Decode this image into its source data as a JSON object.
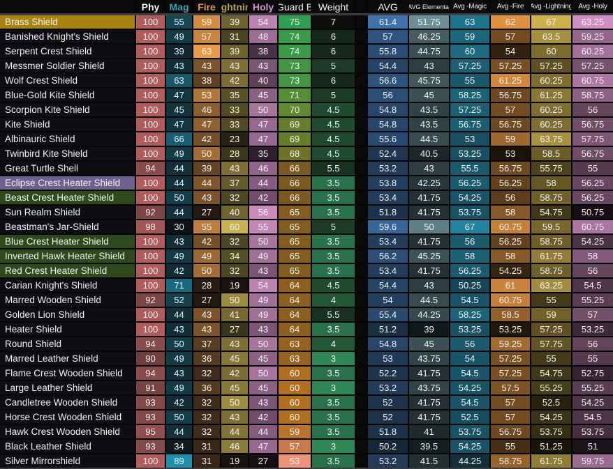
{
  "table": {
    "columns": [
      {
        "key": "name",
        "label": ""
      },
      {
        "key": "phy",
        "label": "Phy"
      },
      {
        "key": "mag",
        "label": "Mag"
      },
      {
        "key": "fire",
        "label": "Fire"
      },
      {
        "key": "lightning",
        "label": "Lightning"
      },
      {
        "key": "holy",
        "label": "Holy"
      },
      {
        "key": "guard",
        "label": "Guard B"
      },
      {
        "key": "weight",
        "label": "Weight"
      },
      {
        "key": "spacer",
        "label": ""
      },
      {
        "key": "avg",
        "label": "AVG"
      },
      {
        "key": "avg_elemental",
        "label": "AVG Elemental"
      },
      {
        "key": "avg_magic",
        "label": "Avg -Magic"
      },
      {
        "key": "avg_fire",
        "label": "Avg -Fire"
      },
      {
        "key": "avg_lightning",
        "label": "Avg -Lightning"
      },
      {
        "key": "avg_holy",
        "label": "Avg -Holy"
      }
    ],
    "header_text_colors": {
      "phy": "#f2f2f2",
      "mag": "#35a3bf",
      "fire": "#e09a50",
      "lightning": "#b7a04e",
      "holy": "#d98fd0",
      "guard": "#f2f2f2",
      "weight": "#f2f2f2",
      "avg": "#f2f2f2",
      "avg_elemental": "#ededed",
      "avg_magic": "#ededed",
      "avg_fire": "#ededed",
      "avg_lightning": "#ededed",
      "avg_holy": "#ededed"
    },
    "name_colors": {
      "default": "#0e0d12",
      "gold": "#a9830d",
      "purple": "#6e6190",
      "green": "#2e4a1c"
    },
    "color_scales": {
      "phy": [
        [
          90,
          "#6f3f3f"
        ],
        [
          100,
          "#b05c5c"
        ]
      ],
      "mag": [
        [
          30,
          "#0c1317"
        ],
        [
          89,
          "#1f8fae"
        ]
      ],
      "fire": [
        [
          27,
          "#221911"
        ],
        [
          63,
          "#e89b49"
        ]
      ],
      "lightning": [
        [
          19,
          "#16140c"
        ],
        [
          60,
          "#c8b150"
        ]
      ],
      "holy": [
        [
          27,
          "#150e13"
        ],
        [
          36,
          "#342132"
        ],
        [
          44,
          "#855c80"
        ],
        [
          56,
          "#c88bbc"
        ]
      ],
      "guard": [
        [
          53,
          "#f0917a"
        ],
        [
          57,
          "#c97a4a"
        ],
        [
          60,
          "#b06f1f"
        ],
        [
          63,
          "#96621f"
        ],
        [
          66,
          "#7a5a20"
        ],
        [
          70,
          "#5f8a30"
        ],
        [
          75,
          "#2f9e4e"
        ]
      ],
      "weight": [
        [
          3,
          "#2e8755"
        ],
        [
          3.5,
          "#28714a"
        ],
        [
          4,
          "#225836"
        ],
        [
          5,
          "#1b3b26"
        ],
        [
          6,
          "#15281b"
        ],
        [
          7,
          "#0d0f0d"
        ]
      ],
      "avg": [
        [
          50.2,
          "#16273a"
        ],
        [
          61.4,
          "#3f72ad"
        ]
      ],
      "avg_elemental": [
        [
          39,
          "#10181a"
        ],
        [
          51.75,
          "#6b8f98"
        ]
      ],
      "avg_magic": [
        [
          44.25,
          "#12303a"
        ],
        [
          67,
          "#21839f"
        ]
      ],
      "avg_fire": [
        [
          53,
          "#1c1309"
        ],
        [
          62,
          "#df9140"
        ]
      ],
      "avg_lightning": [
        [
          51.25,
          "#191507"
        ],
        [
          67,
          "#cdb14e"
        ]
      ],
      "avg_holy": [
        [
          50.75,
          "#180f16"
        ],
        [
          63.25,
          "#cf8fc2"
        ]
      ]
    },
    "rows": [
      {
        "name": "Brass Shield",
        "tint": "gold",
        "values": {
          "phy": 100,
          "mag": 55,
          "fire": 59,
          "lightning": 39,
          "holy": 54,
          "guard": 75,
          "weight": 7,
          "avg": 61.4,
          "avg_elemental": 51.75,
          "avg_magic": 63,
          "avg_fire": 62,
          "avg_lightning": 67,
          "avg_holy": 63.25
        }
      },
      {
        "name": "Banished Knight's Shield",
        "tint": "default",
        "values": {
          "phy": 100,
          "mag": 49,
          "fire": 57,
          "lightning": 31,
          "holy": 48,
          "guard": 74,
          "weight": 6,
          "avg": 57,
          "avg_elemental": 46.25,
          "avg_magic": 59,
          "avg_fire": 57,
          "avg_lightning": 63.5,
          "avg_holy": 59.25
        }
      },
      {
        "name": "Serpent Crest Shield",
        "tint": "default",
        "values": {
          "phy": 100,
          "mag": 39,
          "fire": 63,
          "lightning": 39,
          "holy": 38,
          "guard": 74,
          "weight": 6,
          "avg": 55.8,
          "avg_elemental": 44.75,
          "avg_magic": 60,
          "avg_fire": 54,
          "avg_lightning": 60,
          "avg_holy": 60.25
        }
      },
      {
        "name": "Messmer Soldier Shield",
        "tint": "default",
        "values": {
          "phy": 100,
          "mag": 43,
          "fire": 43,
          "lightning": 43,
          "holy": 43,
          "guard": 73,
          "weight": 5,
          "avg": 54.4,
          "avg_elemental": 43,
          "avg_magic": 57.25,
          "avg_fire": 57.25,
          "avg_lightning": 57.25,
          "avg_holy": 57.25
        }
      },
      {
        "name": "Wolf Crest Shield",
        "tint": "default",
        "values": {
          "phy": 100,
          "mag": 63,
          "fire": 38,
          "lightning": 42,
          "holy": 40,
          "guard": 73,
          "weight": 6,
          "avg": 56.6,
          "avg_elemental": 45.75,
          "avg_magic": 55,
          "avg_fire": 61.25,
          "avg_lightning": 60.25,
          "avg_holy": 60.75
        }
      },
      {
        "name": "Blue-Gold Kite Shield",
        "tint": "default",
        "values": {
          "phy": 100,
          "mag": 47,
          "fire": 53,
          "lightning": 35,
          "holy": 45,
          "guard": 71,
          "weight": 5,
          "avg": 56,
          "avg_elemental": 45,
          "avg_magic": 58.25,
          "avg_fire": 56.75,
          "avg_lightning": 61.25,
          "avg_holy": 58.75
        }
      },
      {
        "name": "Scorpion Kite Shield",
        "tint": "default",
        "values": {
          "phy": 100,
          "mag": 45,
          "fire": 46,
          "lightning": 33,
          "holy": 50,
          "guard": 70,
          "weight": 4.5,
          "avg": 54.8,
          "avg_elemental": 43.5,
          "avg_magic": 57.25,
          "avg_fire": 57,
          "avg_lightning": 60.25,
          "avg_holy": 56
        }
      },
      {
        "name": "Kite Shield",
        "tint": "default",
        "values": {
          "phy": 100,
          "mag": 47,
          "fire": 47,
          "lightning": 33,
          "holy": 47,
          "guard": 69,
          "weight": 4.5,
          "avg": 54.8,
          "avg_elemental": 43.5,
          "avg_magic": 56.75,
          "avg_fire": 56.75,
          "avg_lightning": 60.25,
          "avg_holy": 56.75
        }
      },
      {
        "name": "Albinauric Shield",
        "tint": "default",
        "values": {
          "phy": 100,
          "mag": 66,
          "fire": 42,
          "lightning": 23,
          "holy": 47,
          "guard": 69,
          "weight": 4.5,
          "avg": 55.6,
          "avg_elemental": 44.5,
          "avg_magic": 53,
          "avg_fire": 59,
          "avg_lightning": 63.75,
          "avg_holy": 57.75
        }
      },
      {
        "name": "Twinbird Kite Shield",
        "tint": "default",
        "values": {
          "phy": 100,
          "mag": 49,
          "fire": 50,
          "lightning": 28,
          "holy": 35,
          "guard": 68,
          "weight": 4.5,
          "avg": 52.4,
          "avg_elemental": 40.5,
          "avg_magic": 53.25,
          "avg_fire": 53,
          "avg_lightning": 58.5,
          "avg_holy": 56.75
        }
      },
      {
        "name": "Great Turtle Shell",
        "tint": "default",
        "values": {
          "phy": 94,
          "mag": 44,
          "fire": 39,
          "lightning": 43,
          "holy": 46,
          "guard": 66,
          "weight": 5.5,
          "avg": 53.2,
          "avg_elemental": 43,
          "avg_magic": 55.5,
          "avg_fire": 56.75,
          "avg_lightning": 55.75,
          "avg_holy": 55
        }
      },
      {
        "name": "Eclipse Crest Heater Shield",
        "tint": "purple",
        "values": {
          "phy": 100,
          "mag": 44,
          "fire": 44,
          "lightning": 37,
          "holy": 44,
          "guard": 66,
          "weight": 3.5,
          "avg": 53.8,
          "avg_elemental": 42.25,
          "avg_magic": 56.25,
          "avg_fire": 56.25,
          "avg_lightning": 58,
          "avg_holy": 56.25
        }
      },
      {
        "name": "Beast Crest Heater Shield",
        "tint": "green",
        "values": {
          "phy": 100,
          "mag": 50,
          "fire": 43,
          "lightning": 32,
          "holy": 42,
          "guard": 66,
          "weight": 3.5,
          "avg": 53.4,
          "avg_elemental": 41.75,
          "avg_magic": 54.25,
          "avg_fire": 56,
          "avg_lightning": 58.75,
          "avg_holy": 56.25
        }
      },
      {
        "name": "Sun Realm Shield",
        "tint": "default",
        "values": {
          "phy": 92,
          "mag": 44,
          "fire": 27,
          "lightning": 40,
          "holy": 56,
          "guard": 65,
          "weight": 3.5,
          "avg": 51.8,
          "avg_elemental": 41.75,
          "avg_magic": 53.75,
          "avg_fire": 58,
          "avg_lightning": 54.75,
          "avg_holy": 50.75
        }
      },
      {
        "name": "Beastman's Jar-Shield",
        "tint": "default",
        "values": {
          "phy": 98,
          "mag": 30,
          "fire": 55,
          "lightning": 60,
          "holy": 55,
          "guard": 65,
          "weight": 5,
          "avg": 59.6,
          "avg_elemental": 50,
          "avg_magic": 67,
          "avg_fire": 60.75,
          "avg_lightning": 59.5,
          "avg_holy": 60.75
        }
      },
      {
        "name": "Blue Crest Heater Shield",
        "tint": "green",
        "values": {
          "phy": 100,
          "mag": 43,
          "fire": 42,
          "lightning": 32,
          "holy": 50,
          "guard": 65,
          "weight": 3.5,
          "avg": 53.4,
          "avg_elemental": 41.75,
          "avg_magic": 56,
          "avg_fire": 56.25,
          "avg_lightning": 58.75,
          "avg_holy": 54.25
        }
      },
      {
        "name": "Inverted Hawk Heater Shield",
        "tint": "green",
        "values": {
          "phy": 100,
          "mag": 49,
          "fire": 49,
          "lightning": 34,
          "holy": 49,
          "guard": 65,
          "weight": 3.5,
          "avg": 56.2,
          "avg_elemental": 45.25,
          "avg_magic": 58,
          "avg_fire": 58,
          "avg_lightning": 61.75,
          "avg_holy": 58
        }
      },
      {
        "name": "Red Crest Heater Shield",
        "tint": "green",
        "values": {
          "phy": 100,
          "mag": 42,
          "fire": 50,
          "lightning": 32,
          "holy": 43,
          "guard": 65,
          "weight": 3.5,
          "avg": 53.4,
          "avg_elemental": 41.75,
          "avg_magic": 56.25,
          "avg_fire": 54.25,
          "avg_lightning": 58.75,
          "avg_holy": 56
        }
      },
      {
        "name": "Carian Knight's Shield",
        "tint": "default",
        "values": {
          "phy": 100,
          "mag": 71,
          "fire": 28,
          "lightning": 19,
          "holy": 54,
          "guard": 64,
          "weight": 4.5,
          "avg": 54.4,
          "avg_elemental": 43,
          "avg_magic": 50.25,
          "avg_fire": 61,
          "avg_lightning": 63.25,
          "avg_holy": 54.5
        }
      },
      {
        "name": "Marred Wooden Shield",
        "tint": "default",
        "values": {
          "phy": 92,
          "mag": 52,
          "fire": 27,
          "lightning": 50,
          "holy": 49,
          "guard": 64,
          "weight": 4,
          "avg": 54,
          "avg_elemental": 44.5,
          "avg_magic": 54.5,
          "avg_fire": 60.75,
          "avg_lightning": 55,
          "avg_holy": 55.25
        }
      },
      {
        "name": "Golden Lion Shield",
        "tint": "default",
        "values": {
          "phy": 100,
          "mag": 44,
          "fire": 43,
          "lightning": 41,
          "holy": 49,
          "guard": 64,
          "weight": 5.5,
          "avg": 55.4,
          "avg_elemental": 44.25,
          "avg_magic": 58.25,
          "avg_fire": 58.5,
          "avg_lightning": 59,
          "avg_holy": 57
        }
      },
      {
        "name": "Heater Shield",
        "tint": "default",
        "values": {
          "phy": 100,
          "mag": 43,
          "fire": 43,
          "lightning": 27,
          "holy": 43,
          "guard": 64,
          "weight": 3.5,
          "avg": 51.2,
          "avg_elemental": 39,
          "avg_magic": 53.25,
          "avg_fire": 53.25,
          "avg_lightning": 57.25,
          "avg_holy": 53.25
        }
      },
      {
        "name": "Round Shield",
        "tint": "default",
        "values": {
          "phy": 94,
          "mag": 50,
          "fire": 37,
          "lightning": 43,
          "holy": 50,
          "guard": 63,
          "weight": 4,
          "avg": 54.8,
          "avg_elemental": 45,
          "avg_magic": 56,
          "avg_fire": 59.25,
          "avg_lightning": 57.75,
          "avg_holy": 56
        }
      },
      {
        "name": "Marred Leather Shield",
        "tint": "default",
        "values": {
          "phy": 90,
          "mag": 49,
          "fire": 36,
          "lightning": 45,
          "holy": 45,
          "guard": 63,
          "weight": 3,
          "avg": 53,
          "avg_elemental": 43.75,
          "avg_magic": 54,
          "avg_fire": 57.25,
          "avg_lightning": 55,
          "avg_holy": 55
        }
      },
      {
        "name": "Flame Crest Wooden Shield",
        "tint": "default",
        "values": {
          "phy": 94,
          "mag": 43,
          "fire": 32,
          "lightning": 42,
          "holy": 50,
          "guard": 60,
          "weight": 3.5,
          "avg": 52.2,
          "avg_elemental": 41.75,
          "avg_magic": 54.5,
          "avg_fire": 57.25,
          "avg_lightning": 54.75,
          "avg_holy": 52.75
        }
      },
      {
        "name": "Large Leather Shield",
        "tint": "default",
        "values": {
          "phy": 91,
          "mag": 49,
          "fire": 36,
          "lightning": 45,
          "holy": 45,
          "guard": 60,
          "weight": 3,
          "avg": 53.2,
          "avg_elemental": 43.75,
          "avg_magic": 54.25,
          "avg_fire": 57.5,
          "avg_lightning": 55.25,
          "avg_holy": 55.25
        }
      },
      {
        "name": "Candletree Wooden Shield",
        "tint": "default",
        "values": {
          "phy": 93,
          "mag": 42,
          "fire": 32,
          "lightning": 50,
          "holy": 43,
          "guard": 60,
          "weight": 3.5,
          "avg": 52,
          "avg_elemental": 41.75,
          "avg_magic": 54.5,
          "avg_fire": 57,
          "avg_lightning": 52.5,
          "avg_holy": 54.25
        }
      },
      {
        "name": "Horse Crest Wooden Shield",
        "tint": "default",
        "values": {
          "phy": 93,
          "mag": 50,
          "fire": 32,
          "lightning": 43,
          "holy": 42,
          "guard": 60,
          "weight": 3.5,
          "avg": 52,
          "avg_elemental": 41.75,
          "avg_magic": 52.5,
          "avg_fire": 57,
          "avg_lightning": 54.25,
          "avg_holy": 54.5
        }
      },
      {
        "name": "Hawk Crest Wooden Shield",
        "tint": "default",
        "values": {
          "phy": 95,
          "mag": 44,
          "fire": 32,
          "lightning": 44,
          "holy": 44,
          "guard": 59,
          "weight": 3.5,
          "avg": 51.8,
          "avg_elemental": 41,
          "avg_magic": 53.75,
          "avg_fire": 56.75,
          "avg_lightning": 53.75,
          "avg_holy": 53.75
        }
      },
      {
        "name": "Black Leather Shield",
        "tint": "default",
        "values": {
          "phy": 93,
          "mag": 34,
          "fire": 31,
          "lightning": 46,
          "holy": 47,
          "guard": 57,
          "weight": 3,
          "avg": 50.2,
          "avg_elemental": 39.5,
          "avg_magic": 54.25,
          "avg_fire": 55,
          "avg_lightning": 51.25,
          "avg_holy": 51
        }
      },
      {
        "name": "Silver Mirrorshield",
        "tint": "default",
        "values": {
          "phy": 100,
          "mag": 89,
          "fire": 31,
          "lightning": 19,
          "holy": 27,
          "guard": 53,
          "weight": 3.5,
          "avg": 53.2,
          "avg_elemental": 41.5,
          "avg_magic": 44.25,
          "avg_fire": 58.75,
          "avg_lightning": 61.75,
          "avg_holy": 59.75
        }
      }
    ]
  }
}
